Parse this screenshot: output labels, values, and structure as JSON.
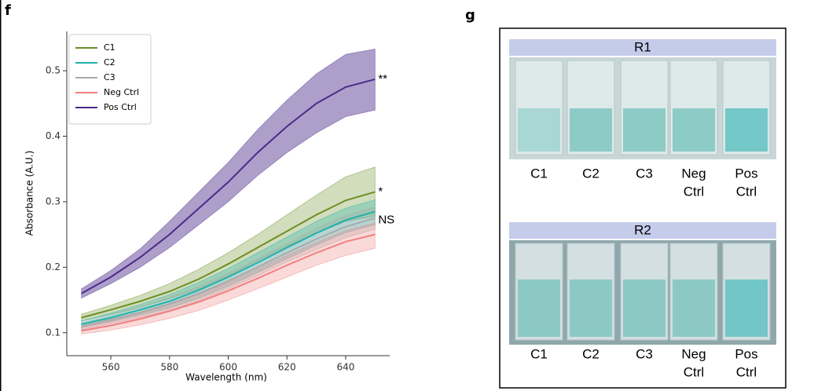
{
  "panel_f": {
    "label": "f",
    "chart_data": {
      "type": "band-line",
      "xlabel": "Wavelength (nm)",
      "ylabel": "Absorbance (A.U.)",
      "x": [
        550,
        560,
        570,
        580,
        590,
        600,
        610,
        620,
        630,
        640,
        650
      ],
      "xlim": [
        545,
        655
      ],
      "xticks": [
        560,
        580,
        600,
        620,
        640
      ],
      "ylim": [
        0.065,
        0.56
      ],
      "yticks": [
        0.1,
        0.2,
        0.3,
        0.4,
        0.5
      ],
      "legend": "upper left",
      "series": [
        {
          "name": "C1",
          "color": "#6b8e23",
          "values": [
            0.123,
            0.135,
            0.148,
            0.163,
            0.182,
            0.205,
            0.23,
            0.255,
            0.28,
            0.302,
            0.315
          ],
          "upper": [
            0.128,
            0.142,
            0.157,
            0.175,
            0.197,
            0.222,
            0.25,
            0.28,
            0.31,
            0.338,
            0.353
          ],
          "lower": [
            0.118,
            0.128,
            0.139,
            0.152,
            0.167,
            0.187,
            0.21,
            0.232,
            0.252,
            0.27,
            0.278
          ]
        },
        {
          "name": "C2",
          "color": "#20b2aa",
          "values": [
            0.113,
            0.123,
            0.135,
            0.148,
            0.165,
            0.185,
            0.207,
            0.23,
            0.252,
            0.272,
            0.285
          ],
          "upper": [
            0.118,
            0.13,
            0.143,
            0.158,
            0.177,
            0.198,
            0.222,
            0.246,
            0.27,
            0.29,
            0.303
          ],
          "lower": [
            0.108,
            0.117,
            0.127,
            0.138,
            0.153,
            0.171,
            0.192,
            0.213,
            0.234,
            0.253,
            0.265
          ]
        },
        {
          "name": "C3",
          "color": "#a9a9a9",
          "values": [
            0.11,
            0.12,
            0.131,
            0.144,
            0.16,
            0.179,
            0.2,
            0.222,
            0.243,
            0.262,
            0.275
          ],
          "upper": [
            0.115,
            0.126,
            0.139,
            0.154,
            0.171,
            0.191,
            0.213,
            0.236,
            0.259,
            0.279,
            0.292
          ],
          "lower": [
            0.105,
            0.114,
            0.123,
            0.134,
            0.149,
            0.167,
            0.187,
            0.208,
            0.227,
            0.245,
            0.258
          ]
        },
        {
          "name": "Neg Ctrl",
          "color": "#f08080",
          "values": [
            0.103,
            0.111,
            0.121,
            0.133,
            0.147,
            0.164,
            0.183,
            0.203,
            0.222,
            0.239,
            0.25
          ],
          "upper": [
            0.108,
            0.118,
            0.13,
            0.143,
            0.159,
            0.177,
            0.197,
            0.218,
            0.238,
            0.256,
            0.268
          ],
          "lower": [
            0.098,
            0.104,
            0.112,
            0.122,
            0.134,
            0.15,
            0.167,
            0.185,
            0.203,
            0.218,
            0.229
          ]
        },
        {
          "name": "Pos Ctrl",
          "color": "#4b2a8a",
          "values": [
            0.16,
            0.185,
            0.215,
            0.25,
            0.29,
            0.33,
            0.375,
            0.415,
            0.45,
            0.475,
            0.487
          ],
          "upper": [
            0.167,
            0.195,
            0.228,
            0.27,
            0.315,
            0.36,
            0.41,
            0.455,
            0.495,
            0.525,
            0.533
          ],
          "lower": [
            0.153,
            0.175,
            0.2,
            0.23,
            0.265,
            0.3,
            0.34,
            0.375,
            0.405,
            0.43,
            0.44
          ]
        }
      ],
      "annotations": [
        "**",
        "*",
        "NS"
      ]
    }
  },
  "panel_g": {
    "label": "g",
    "rows": [
      {
        "title": "R1",
        "labels": [
          [
            "C1"
          ],
          [
            "C2"
          ],
          [
            "C3"
          ],
          [
            "Neg",
            "Ctrl"
          ],
          [
            "Pos",
            "Ctrl"
          ]
        ]
      },
      {
        "title": "R2",
        "labels": [
          [
            "C1"
          ],
          [
            "C2"
          ],
          [
            "C3"
          ],
          [
            "Neg",
            "Ctrl"
          ],
          [
            "Pos",
            "Ctrl"
          ]
        ]
      }
    ]
  }
}
